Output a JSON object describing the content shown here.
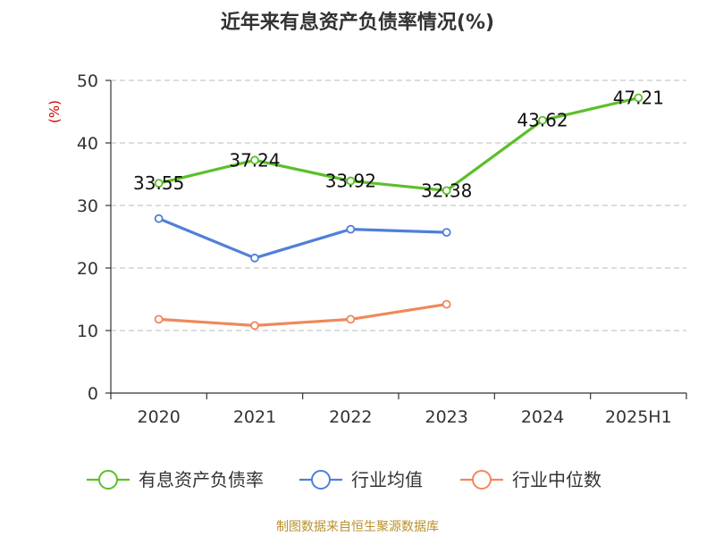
{
  "chart_data": {
    "type": "line",
    "title": "近年来有息资产负债率情况(%)",
    "ylabel": "(%)",
    "xlabel": "",
    "categories": [
      "2020",
      "2021",
      "2022",
      "2023",
      "2024",
      "2025H1"
    ],
    "ylim": [
      0,
      50
    ],
    "yticks": [
      0,
      10,
      20,
      30,
      40,
      50
    ],
    "grid": true,
    "legend_position": "bottom",
    "series": [
      {
        "name": "有息资产负债率",
        "color": "#5cbf2a",
        "values": [
          33.55,
          37.24,
          33.92,
          32.38,
          43.62,
          47.21
        ],
        "labels": [
          "33.55",
          "37.24",
          "33.92",
          "32.38",
          "43.62",
          "47.21"
        ]
      },
      {
        "name": "行业均值",
        "color": "#4f7fd9",
        "values": [
          27.9,
          21.6,
          26.2,
          25.7,
          null,
          null
        ]
      },
      {
        "name": "行业中位数",
        "color": "#f0885a",
        "values": [
          11.8,
          10.8,
          11.8,
          14.2,
          null,
          null
        ]
      }
    ]
  },
  "source": "制图数据来自恒生聚源数据库"
}
